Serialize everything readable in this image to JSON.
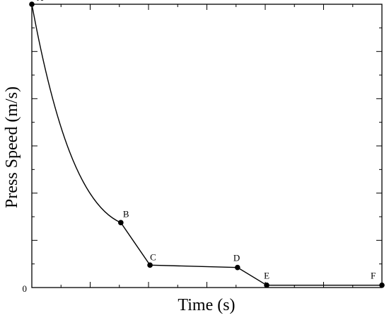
{
  "chart_data": {
    "type": "line",
    "title": "",
    "xlabel": "Time (s)",
    "ylabel": "Press Speed (m/s)",
    "y_tick_labels": [
      "0"
    ],
    "xlim": [
      0,
      12
    ],
    "ylim": [
      0,
      12
    ],
    "grid": false,
    "legend": "none",
    "colors": {
      "line": "#000000",
      "marker": "#000000",
      "frame": "#000000"
    },
    "series": [
      {
        "points": [
          {
            "label": "A",
            "x": 0.0,
            "y": 12.0
          },
          {
            "label": "B",
            "x": 3.05,
            "y": 2.75
          },
          {
            "label": "C",
            "x": 4.05,
            "y": 0.95
          },
          {
            "label": "D",
            "x": 7.05,
            "y": 0.85
          },
          {
            "label": "E",
            "x": 8.05,
            "y": 0.1
          },
          {
            "label": "F",
            "x": 12.0,
            "y": 0.1
          }
        ]
      }
    ]
  }
}
